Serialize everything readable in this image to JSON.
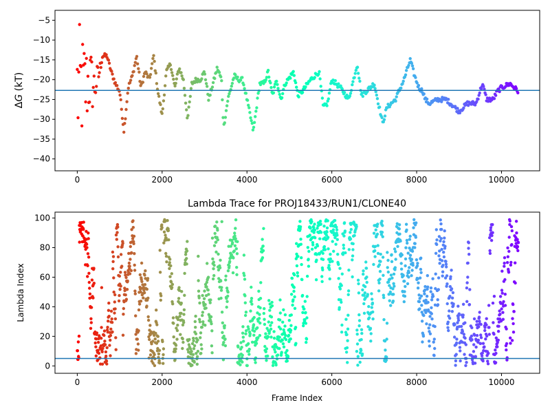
{
  "chart_data": [
    {
      "type": "scatter",
      "title": "",
      "ylabel_italic_symbol": "G",
      "ylabel_prefix": "Δ",
      "ylabel_suffix": " (kT)",
      "xlim": [
        -525,
        10900
      ],
      "ylim": [
        -43,
        -2.5
      ],
      "xticks": [
        0,
        2000,
        4000,
        6000,
        8000,
        10000
      ],
      "yticks": [
        -5,
        -10,
        -15,
        -20,
        -25,
        -30,
        -35,
        -40
      ],
      "xtick_labels": [
        "0",
        "2000",
        "4000",
        "6000",
        "8000",
        "10000"
      ],
      "ytick_labels": [
        "−5",
        "−10",
        "−15",
        "−20",
        "−25",
        "−30",
        "−35",
        "−40"
      ],
      "reference_line": -22.7,
      "reference_color": "#1f77b4",
      "colormap": "rainbow_reversed_by_frame",
      "n_frames": 10400,
      "trace_anchors": [
        [
          0,
          -23
        ],
        [
          80,
          -22
        ],
        [
          180,
          -22
        ],
        [
          300,
          -20
        ],
        [
          400,
          -22
        ],
        [
          500,
          -19
        ],
        [
          600,
          -14
        ],
        [
          700,
          -14
        ],
        [
          800,
          -18
        ],
        [
          900,
          -21
        ],
        [
          1000,
          -23
        ],
        [
          1100,
          -33
        ],
        [
          1200,
          -22
        ],
        [
          1300,
          -19
        ],
        [
          1400,
          -14
        ],
        [
          1500,
          -22
        ],
        [
          1600,
          -18
        ],
        [
          1700,
          -20
        ],
        [
          1800,
          -14
        ],
        [
          1900,
          -23
        ],
        [
          2000,
          -29
        ],
        [
          2100,
          -18
        ],
        [
          2200,
          -16
        ],
        [
          2300,
          -22
        ],
        [
          2400,
          -17
        ],
        [
          2500,
          -20
        ],
        [
          2600,
          -30
        ],
        [
          2700,
          -21
        ],
        [
          2800,
          -20
        ],
        [
          2900,
          -20
        ],
        [
          3000,
          -18
        ],
        [
          3100,
          -25
        ],
        [
          3200,
          -21
        ],
        [
          3300,
          -17
        ],
        [
          3400,
          -20
        ],
        [
          3450,
          -32
        ],
        [
          3550,
          -25
        ],
        [
          3700,
          -19
        ],
        [
          3800,
          -20
        ],
        [
          3900,
          -20
        ],
        [
          4000,
          -25
        ],
        [
          4150,
          -33
        ],
        [
          4300,
          -21
        ],
        [
          4400,
          -21
        ],
        [
          4500,
          -18
        ],
        [
          4600,
          -24
        ],
        [
          4700,
          -20
        ],
        [
          4800,
          -25
        ],
        [
          4900,
          -21
        ],
        [
          5100,
          -18
        ],
        [
          5200,
          -24
        ],
        [
          5300,
          -23
        ],
        [
          5500,
          -20
        ],
        [
          5700,
          -18
        ],
        [
          5800,
          -27
        ],
        [
          5900,
          -26
        ],
        [
          6000,
          -20
        ],
        [
          6200,
          -22
        ],
        [
          6400,
          -25
        ],
        [
          6600,
          -16
        ],
        [
          6700,
          -24
        ],
        [
          6800,
          -23
        ],
        [
          7000,
          -21
        ],
        [
          7200,
          -31
        ],
        [
          7300,
          -27
        ],
        [
          7500,
          -25
        ],
        [
          7700,
          -20
        ],
        [
          7850,
          -15
        ],
        [
          7950,
          -19
        ],
        [
          8050,
          -22
        ],
        [
          8150,
          -23
        ],
        [
          8200,
          -25
        ],
        [
          8300,
          -26
        ],
        [
          8500,
          -25
        ],
        [
          8700,
          -25
        ],
        [
          8900,
          -27
        ],
        [
          9000,
          -28
        ],
        [
          9200,
          -26
        ],
        [
          9400,
          -26
        ],
        [
          9550,
          -21
        ],
        [
          9650,
          -25
        ],
        [
          9800,
          -25
        ],
        [
          9900,
          -23
        ],
        [
          10000,
          -22
        ],
        [
          10200,
          -21
        ],
        [
          10400,
          -23
        ]
      ]
    },
    {
      "type": "scatter",
      "title": "Lambda Trace for PROJ18433/RUN1/CLONE40",
      "xlabel": "Frame Index",
      "ylabel": "Lambda Index",
      "xlim": [
        -525,
        10900
      ],
      "ylim": [
        -5,
        104
      ],
      "xticks": [
        0,
        2000,
        4000,
        6000,
        8000,
        10000
      ],
      "yticks": [
        0,
        20,
        40,
        60,
        80,
        100
      ],
      "xtick_labels": [
        "0",
        "2000",
        "4000",
        "6000",
        "8000",
        "10000"
      ],
      "ytick_labels": [
        "0",
        "20",
        "40",
        "60",
        "80",
        "100"
      ],
      "reference_line": 5,
      "reference_color": "#1f77b4",
      "colormap": "rainbow_reversed_by_frame",
      "n_frames": 10400,
      "lambda_range": [
        0,
        99
      ]
    }
  ]
}
